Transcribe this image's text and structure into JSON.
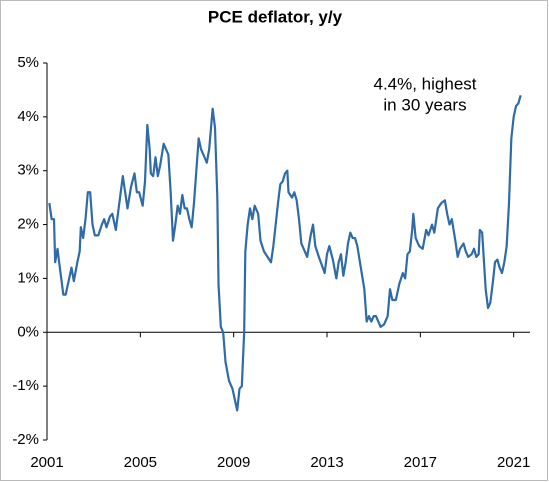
{
  "chart_data": {
    "type": "line",
    "title": "PCE deflator, y/y",
    "annotation": [
      "4.4%, highest",
      "in 30 years"
    ],
    "color": "#2e6ba8",
    "xlim": [
      2001,
      2021.7
    ],
    "xticks": [
      2001,
      2005,
      2009,
      2013,
      2017,
      2021
    ],
    "ylim": [
      -2,
      5
    ],
    "yticks": [
      {
        "value": -2,
        "label": "-2%"
      },
      {
        "value": -1,
        "label": "-1%"
      },
      {
        "value": 0,
        "label": "0%"
      },
      {
        "value": 1,
        "label": "1%"
      },
      {
        "value": 2,
        "label": "2%"
      },
      {
        "value": 3,
        "label": "3%"
      },
      {
        "value": 4,
        "label": "4%"
      },
      {
        "value": 5,
        "label": "5%"
      }
    ],
    "x": [
      2001.1,
      2001.2,
      2001.3,
      2001.35,
      2001.45,
      2001.55,
      2001.7,
      2001.8,
      2001.95,
      2002.05,
      2002.15,
      2002.3,
      2002.4,
      2002.45,
      2002.55,
      2002.65,
      2002.75,
      2002.85,
      2002.95,
      2003.05,
      2003.2,
      2003.35,
      2003.45,
      2003.55,
      2003.7,
      2003.8,
      2003.95,
      2004.1,
      2004.25,
      2004.35,
      2004.45,
      2004.6,
      2004.75,
      2004.85,
      2004.95,
      2005.1,
      2005.2,
      2005.3,
      2005.4,
      2005.45,
      2005.55,
      2005.65,
      2005.75,
      2005.85,
      2006.0,
      2006.1,
      2006.2,
      2006.3,
      2006.4,
      2006.5,
      2006.6,
      2006.7,
      2006.8,
      2006.9,
      2007.0,
      2007.1,
      2007.2,
      2007.3,
      2007.4,
      2007.5,
      2007.6,
      2007.75,
      2007.85,
      2007.95,
      2008.1,
      2008.2,
      2008.3,
      2008.35,
      2008.45,
      2008.55,
      2008.65,
      2008.8,
      2008.95,
      2009.15,
      2009.25,
      2009.35,
      2009.45,
      2009.5,
      2009.6,
      2009.7,
      2009.8,
      2009.9,
      2010.05,
      2010.15,
      2010.3,
      2010.45,
      2010.6,
      2010.7,
      2010.8,
      2010.9,
      2011.0,
      2011.1,
      2011.2,
      2011.3,
      2011.35,
      2011.5,
      2011.6,
      2011.7,
      2011.8,
      2011.9,
      2012.05,
      2012.15,
      2012.3,
      2012.4,
      2012.5,
      2012.65,
      2012.9,
      2013.0,
      2013.1,
      2013.25,
      2013.4,
      2013.5,
      2013.6,
      2013.7,
      2013.8,
      2013.9,
      2014.0,
      2014.1,
      2014.2,
      2014.3,
      2014.45,
      2014.6,
      2014.7,
      2014.8,
      2014.9,
      2015.0,
      2015.1,
      2015.2,
      2015.3,
      2015.45,
      2015.6,
      2015.7,
      2015.8,
      2015.95,
      2016.1,
      2016.25,
      2016.35,
      2016.45,
      2016.55,
      2016.65,
      2016.7,
      2016.8,
      2016.95,
      2017.1,
      2017.25,
      2017.35,
      2017.5,
      2017.6,
      2017.75,
      2017.9,
      2018.05,
      2018.15,
      2018.25,
      2018.35,
      2018.5,
      2018.6,
      2018.7,
      2018.85,
      2018.95,
      2019.05,
      2019.2,
      2019.3,
      2019.4,
      2019.5,
      2019.55,
      2019.65,
      2019.8,
      2019.9,
      2020.0,
      2020.1,
      2020.2,
      2020.3,
      2020.4,
      2020.5,
      2020.6,
      2020.7,
      2020.8,
      2020.9,
      2021.0,
      2021.1,
      2021.2,
      2021.3
    ],
    "values": [
      2.4,
      2.1,
      2.1,
      1.3,
      1.55,
      1.2,
      0.7,
      0.7,
      1.0,
      1.2,
      0.95,
      1.3,
      1.5,
      1.95,
      1.75,
      2.1,
      2.6,
      2.6,
      2.0,
      1.8,
      1.8,
      2.0,
      2.1,
      1.95,
      2.15,
      2.2,
      1.9,
      2.4,
      2.9,
      2.6,
      2.3,
      2.7,
      2.95,
      2.6,
      2.6,
      2.35,
      2.8,
      3.85,
      3.4,
      2.95,
      2.9,
      3.25,
      2.9,
      3.1,
      3.5,
      3.4,
      3.3,
      2.6,
      1.7,
      2.0,
      2.35,
      2.2,
      2.55,
      2.3,
      2.3,
      2.1,
      1.95,
      2.4,
      3.0,
      3.6,
      3.4,
      3.25,
      3.15,
      3.4,
      4.15,
      3.8,
      2.5,
      0.9,
      0.1,
      0.0,
      -0.55,
      -0.9,
      -1.05,
      -1.45,
      -1.05,
      -1.0,
      0.0,
      1.5,
      2.0,
      2.3,
      2.1,
      2.35,
      2.2,
      1.7,
      1.5,
      1.4,
      1.3,
      1.6,
      2.0,
      2.4,
      2.75,
      2.8,
      2.95,
      3.0,
      2.6,
      2.5,
      2.6,
      2.45,
      2.1,
      1.65,
      1.5,
      1.4,
      1.8,
      2.0,
      1.6,
      1.4,
      1.1,
      1.45,
      1.6,
      1.35,
      1.0,
      1.3,
      1.45,
      1.05,
      1.3,
      1.65,
      1.85,
      1.75,
      1.75,
      1.6,
      1.2,
      0.8,
      0.2,
      0.3,
      0.2,
      0.3,
      0.3,
      0.2,
      0.1,
      0.15,
      0.3,
      0.8,
      0.6,
      0.6,
      0.9,
      1.1,
      1.0,
      1.45,
      1.5,
      1.9,
      2.2,
      1.75,
      1.6,
      1.55,
      1.9,
      1.8,
      2.0,
      1.85,
      2.3,
      2.4,
      2.45,
      2.2,
      2.0,
      2.1,
      1.7,
      1.4,
      1.55,
      1.65,
      1.5,
      1.4,
      1.45,
      1.55,
      1.4,
      1.45,
      1.9,
      1.85,
      0.8,
      0.45,
      0.55,
      0.9,
      1.3,
      1.35,
      1.2,
      1.1,
      1.3,
      1.6,
      2.4,
      3.6,
      4.0,
      4.2,
      4.25,
      4.4
    ]
  }
}
